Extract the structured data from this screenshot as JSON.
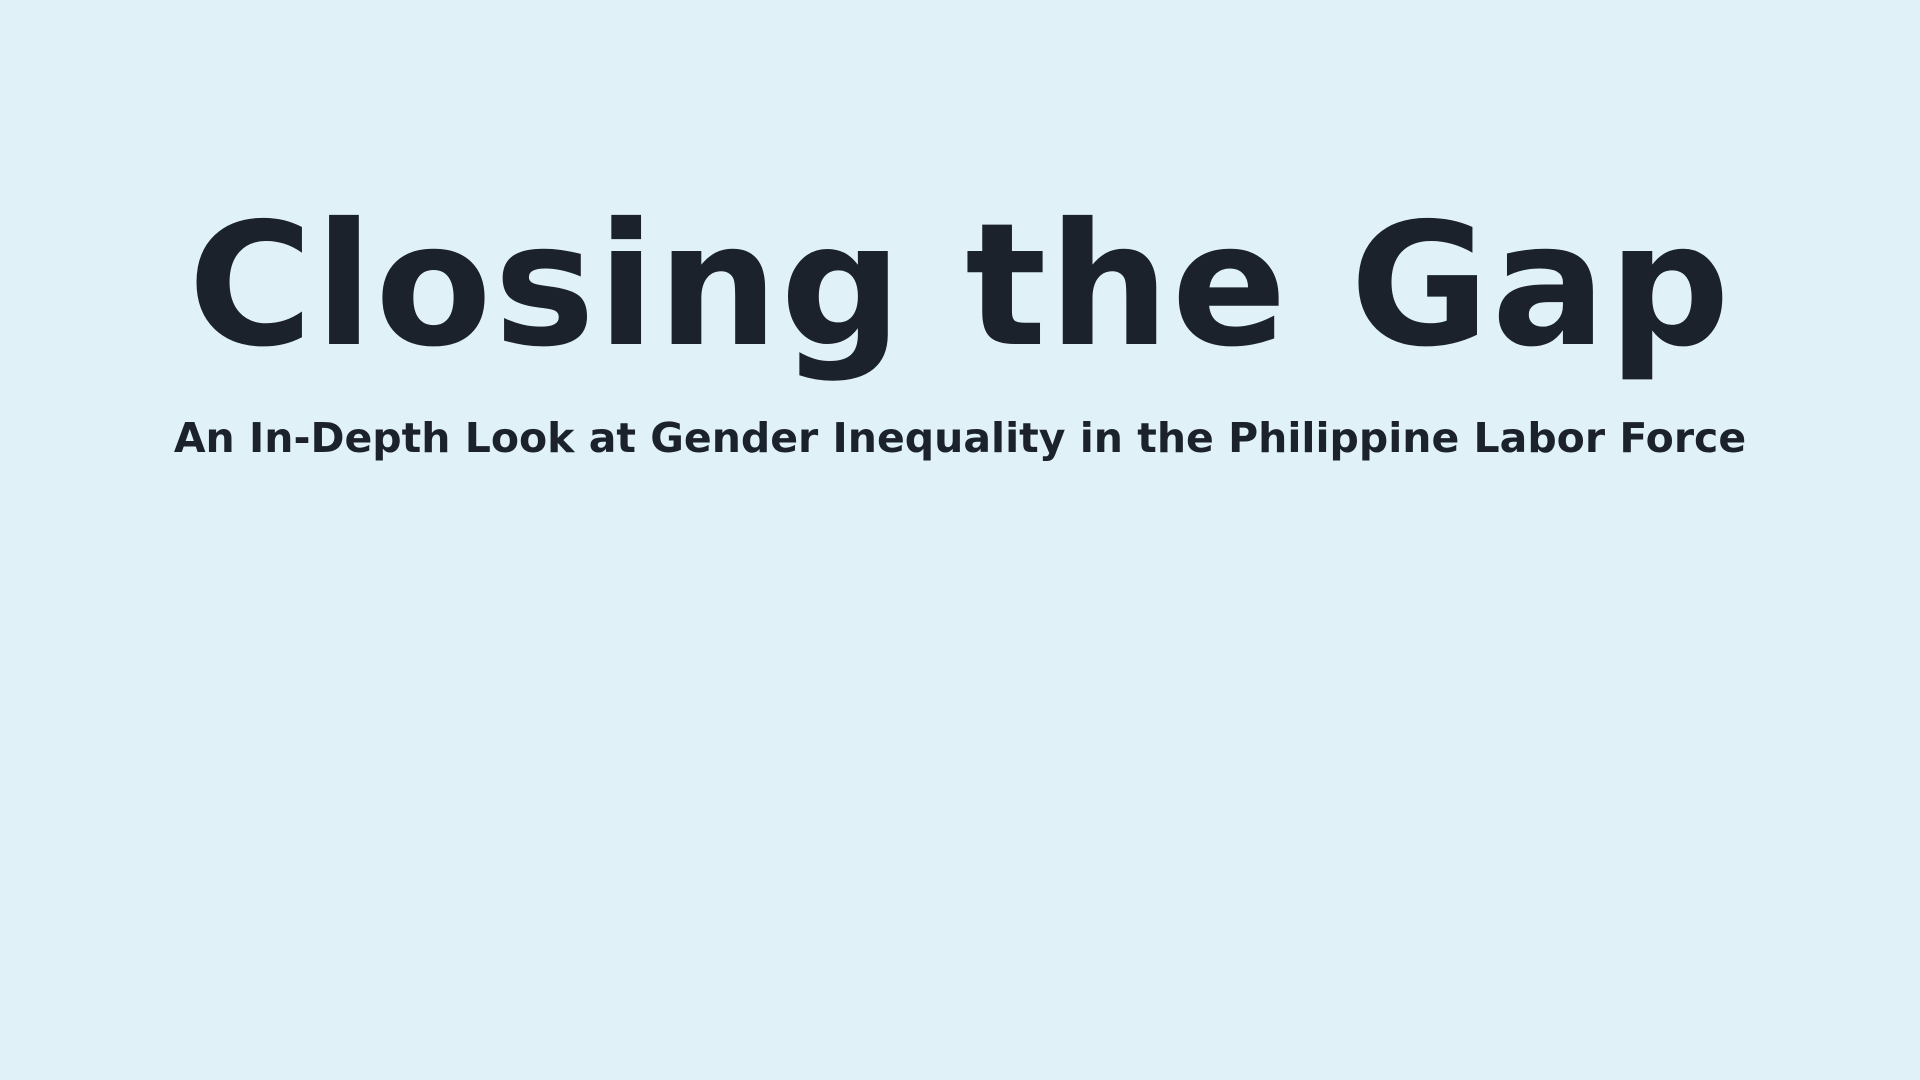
{
  "slide": {
    "title": "Closing the Gap",
    "subtitle": "An In-Depth Look at Gender Inequality in the Philippine Labor Force",
    "colors": {
      "background": "#e0f1f8",
      "text": "#1b222b"
    }
  }
}
